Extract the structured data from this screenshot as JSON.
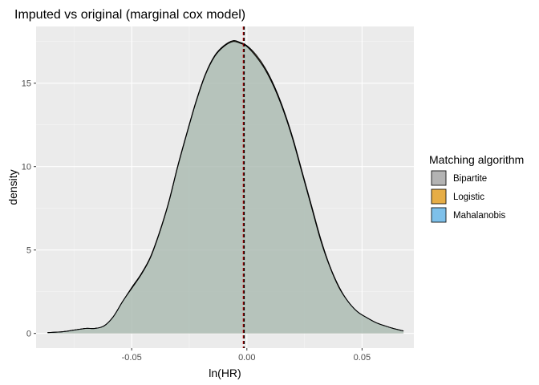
{
  "chart_data": {
    "type": "area",
    "title": "Imputed vs original (marginal cox model)",
    "xlabel": "ln(HR)",
    "ylabel": "density",
    "xlim": [
      -0.0915,
      0.0725
    ],
    "ylim": [
      -0.88,
      18.4
    ],
    "x_ticks": [
      -0.05,
      0.0,
      0.05
    ],
    "x_tick_labels": [
      "-0.05",
      "0.00",
      "0.05"
    ],
    "y_ticks": [
      0,
      5,
      10,
      15
    ],
    "y_tick_labels": [
      "0",
      "5",
      "10",
      "15"
    ],
    "grid": true,
    "panel_background": "#ebebeb",
    "legend": {
      "title": "Matching algorithm",
      "placement": "right",
      "entries": [
        {
          "name": "Bipartite",
          "color": "#b3b3b3"
        },
        {
          "name": "Logistic",
          "color": "#e6ad46"
        },
        {
          "name": "Mahalanobis",
          "color": "#7ec0ea"
        }
      ]
    },
    "vlines": [
      {
        "x": -0.0015,
        "color": "#d90000",
        "style": "dashed"
      },
      {
        "x": -0.0012,
        "color": "#000000",
        "style": "dashed"
      }
    ],
    "series": [
      {
        "name": "Bipartite",
        "color": "#b3b3b3",
        "x": [
          -0.0865,
          -0.08,
          -0.075,
          -0.07,
          -0.066,
          -0.062,
          -0.058,
          -0.054,
          -0.05,
          -0.046,
          -0.042,
          -0.038,
          -0.034,
          -0.03,
          -0.026,
          -0.022,
          -0.018,
          -0.014,
          -0.01,
          -0.006,
          -0.003,
          0.0,
          0.004,
          0.008,
          0.012,
          0.016,
          0.02,
          0.024,
          0.028,
          0.032,
          0.036,
          0.04,
          0.044,
          0.048,
          0.052,
          0.056,
          0.06,
          0.064,
          0.068
        ],
        "y": [
          0.05,
          0.1,
          0.2,
          0.3,
          0.3,
          0.45,
          1.0,
          1.9,
          2.7,
          3.5,
          4.5,
          6.0,
          7.8,
          10.0,
          12.0,
          13.9,
          15.5,
          16.6,
          17.2,
          17.5,
          17.4,
          17.2,
          16.6,
          15.8,
          14.7,
          13.3,
          11.6,
          9.6,
          7.6,
          5.6,
          4.0,
          2.75,
          1.9,
          1.3,
          0.95,
          0.65,
          0.45,
          0.28,
          0.15
        ]
      },
      {
        "name": "Logistic",
        "color": "#e6ad46",
        "x": [
          -0.0865,
          -0.08,
          -0.075,
          -0.07,
          -0.066,
          -0.062,
          -0.058,
          -0.054,
          -0.05,
          -0.046,
          -0.042,
          -0.038,
          -0.034,
          -0.03,
          -0.026,
          -0.022,
          -0.018,
          -0.014,
          -0.01,
          -0.006,
          -0.003,
          0.0,
          0.004,
          0.008,
          0.012,
          0.016,
          0.02,
          0.024,
          0.028,
          0.032,
          0.036,
          0.04,
          0.044,
          0.048,
          0.052,
          0.056,
          0.06,
          0.064,
          0.068
        ],
        "y": [
          0.05,
          0.1,
          0.2,
          0.3,
          0.3,
          0.45,
          1.0,
          1.9,
          2.75,
          3.55,
          4.55,
          6.05,
          7.85,
          10.05,
          12.05,
          13.95,
          15.55,
          16.65,
          17.25,
          17.55,
          17.45,
          17.25,
          16.7,
          15.9,
          14.8,
          13.4,
          11.7,
          9.7,
          7.7,
          5.7,
          4.05,
          2.8,
          1.9,
          1.3,
          0.95,
          0.65,
          0.45,
          0.28,
          0.15
        ]
      },
      {
        "name": "Mahalanobis",
        "color": "#7ec0ea",
        "x": [
          -0.0865,
          -0.08,
          -0.075,
          -0.07,
          -0.066,
          -0.062,
          -0.058,
          -0.054,
          -0.05,
          -0.046,
          -0.042,
          -0.038,
          -0.034,
          -0.03,
          -0.026,
          -0.022,
          -0.018,
          -0.014,
          -0.01,
          -0.006,
          -0.003,
          0.0,
          0.004,
          0.008,
          0.012,
          0.016,
          0.02,
          0.024,
          0.028,
          0.032,
          0.036,
          0.04,
          0.044,
          0.048,
          0.052,
          0.056,
          0.06,
          0.064,
          0.068
        ],
        "y": [
          0.05,
          0.1,
          0.2,
          0.3,
          0.3,
          0.45,
          1.0,
          1.9,
          2.7,
          3.5,
          4.5,
          6.0,
          7.8,
          10.0,
          12.0,
          13.9,
          15.5,
          16.6,
          17.2,
          17.5,
          17.4,
          17.2,
          16.6,
          15.8,
          14.7,
          13.3,
          11.6,
          9.6,
          7.6,
          5.6,
          4.0,
          2.75,
          1.9,
          1.3,
          0.95,
          0.65,
          0.45,
          0.28,
          0.15
        ]
      }
    ]
  }
}
